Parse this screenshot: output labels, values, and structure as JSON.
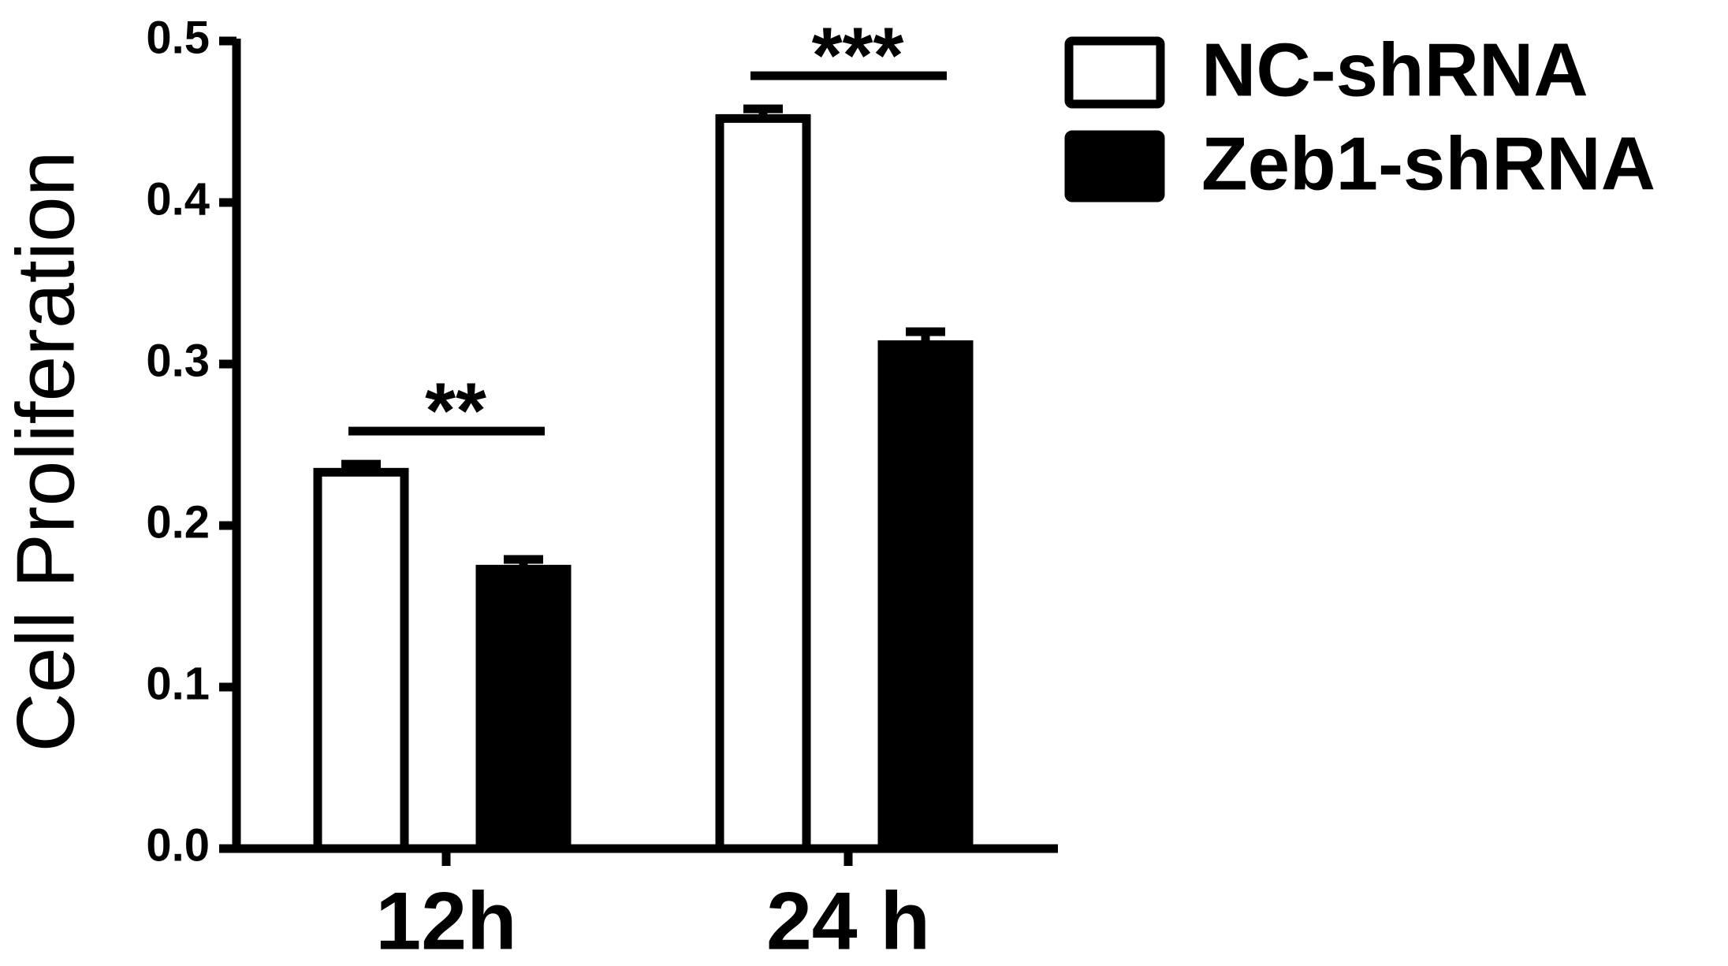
{
  "chart_data": {
    "type": "bar",
    "y_label": "Cell Proliferation",
    "categories": [
      "12h",
      "24 h"
    ],
    "series": [
      {
        "name": "NC-shRNA",
        "color": "#ffffff",
        "values": [
          0.233,
          0.452
        ],
        "errors": [
          0.005,
          0.006
        ]
      },
      {
        "name": "Zeb1-shRNA",
        "color": "#000000",
        "values": [
          0.173,
          0.312
        ],
        "errors": [
          0.006,
          0.008
        ]
      }
    ],
    "annotations": [
      "**",
      "***"
    ],
    "ylim": [
      0,
      0.5
    ],
    "yticks": [
      {
        "value": 0,
        "label": "0.0"
      },
      0.1,
      0.2,
      0.3,
      0.4,
      0.5
    ],
    "legend": "top-right"
  }
}
